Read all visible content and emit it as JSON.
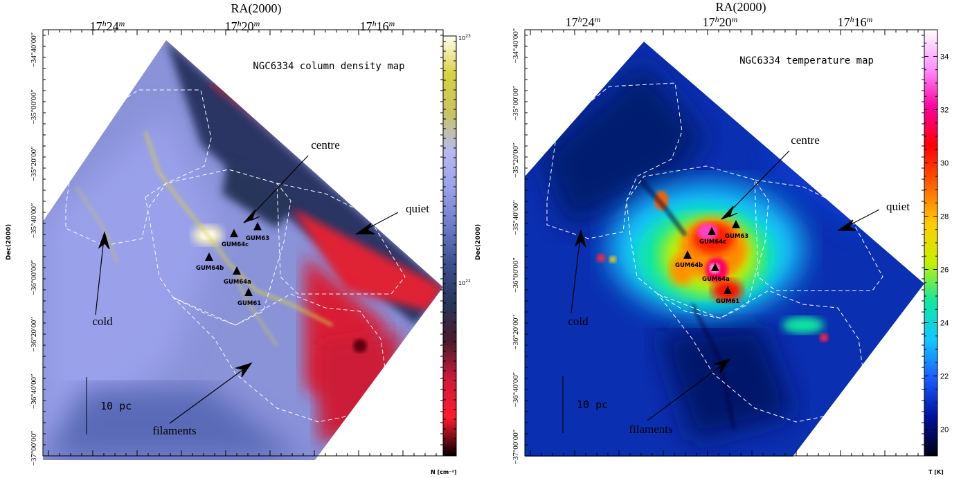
{
  "chart_data": [
    {
      "type": "heatmap",
      "title": "NGC6334 column density map",
      "xlabel": "RA(2000)",
      "ylabel": "Dec(2000)",
      "x_ticks": [
        "17h24m",
        "17h20m",
        "17h16m"
      ],
      "y_ticks": [
        "−34°40′00″",
        "−35°00′00″",
        "−35°20′00″",
        "−35°40′00″",
        "−36°00′00″",
        "−36°20′00″",
        "−36°40′00″",
        "−37°00′00″"
      ],
      "colorbar": {
        "label": "N [cm⁻²]",
        "scale": "log",
        "ticks": [
          {
            "value": 1e+22,
            "label": "10²²"
          },
          {
            "value": 1e+23,
            "label": "10²³"
          }
        ],
        "colors": [
          "#000000",
          "#ff1a2e",
          "#d01a3a",
          "#4a1c2c",
          "#27345a",
          "#3a4f8c",
          "#6b7ac8",
          "#9aa0ea",
          "#b9b9f0",
          "#c8c460",
          "#d9d140",
          "#fffff2"
        ]
      },
      "sources": [
        "GUM64c",
        "GUM63",
        "GUM64b",
        "GUM64a",
        "GUM61"
      ],
      "regions": [
        "centre",
        "quiet",
        "cold",
        "filaments"
      ],
      "scale_bar": "10 pc"
    },
    {
      "type": "heatmap",
      "title": "NGC6334 temperature map",
      "xlabel": "RA(2000)",
      "ylabel": "Dec(2000)",
      "x_ticks": [
        "17h24m",
        "17h20m",
        "17h16m"
      ],
      "y_ticks": [
        "−34°40′00″",
        "−35°00′00″",
        "−35°20′00″",
        "−35°40′00″",
        "−36°00′00″",
        "−36°20′00″",
        "−36°40′00″",
        "−37°00′00″"
      ],
      "colorbar": {
        "label": "T [K]",
        "scale": "linear",
        "range": [
          19,
          35
        ],
        "ticks": [
          20,
          22,
          24,
          26,
          28,
          30,
          32,
          34
        ],
        "colors": [
          "#000010",
          "#0010a0",
          "#1a5cff",
          "#12c8ff",
          "#10e8a0",
          "#c8f000",
          "#ffcc00",
          "#ff6000",
          "#ff0000",
          "#ff00a0",
          "#ff90ff",
          "#ffffff"
        ]
      },
      "sources": [
        "GUM64c",
        "GUM63",
        "GUM64b",
        "GUM64a",
        "GUM61"
      ],
      "regions": [
        "centre",
        "quiet",
        "cold",
        "filaments"
      ],
      "scale_bar": "10 pc"
    }
  ]
}
